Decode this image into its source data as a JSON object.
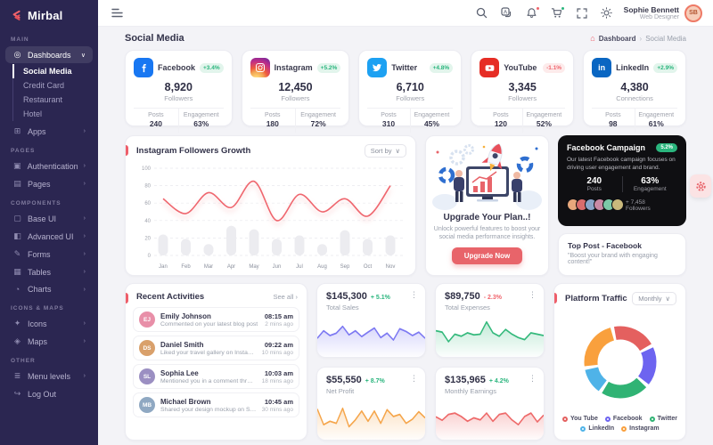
{
  "brand": {
    "name": "Mirbal"
  },
  "navbar": {
    "user": {
      "name": "Sophie Bennett",
      "role": "Web Designer",
      "initials": "SB"
    }
  },
  "page": {
    "title": "Social Media",
    "breadcrumb": {
      "home": "Dashboard",
      "current": "Social Media"
    }
  },
  "sidebar": {
    "sections": [
      {
        "label": "MAIN",
        "items": [
          {
            "icon": "◎",
            "label": "Dashboards",
            "chevron": "∨"
          },
          {
            "icon": "⊞",
            "label": "Apps",
            "chevron": "›"
          }
        ]
      },
      {
        "label": "PAGES",
        "items": [
          {
            "icon": "▣",
            "label": "Authentication",
            "chevron": "›"
          },
          {
            "icon": "▤",
            "label": "Pages",
            "chevron": "›"
          }
        ]
      },
      {
        "label": "COMPONENTS",
        "items": [
          {
            "icon": "▢",
            "label": "Base UI",
            "chevron": "›"
          },
          {
            "icon": "◧",
            "label": "Advanced UI",
            "chevron": "›"
          },
          {
            "icon": "✎",
            "label": "Forms",
            "chevron": "›"
          },
          {
            "icon": "▦",
            "label": "Tables",
            "chevron": "›"
          },
          {
            "icon": "◔",
            "label": "Charts",
            "chevron": "›"
          }
        ]
      },
      {
        "label": "ICONS & MAPS",
        "items": [
          {
            "icon": "✦",
            "label": "Icons",
            "chevron": "›"
          },
          {
            "icon": "◈",
            "label": "Maps",
            "chevron": "›"
          }
        ]
      },
      {
        "label": "OTHER",
        "items": [
          {
            "icon": "≣",
            "label": "Menu levels",
            "chevron": "›"
          },
          {
            "icon": "↪",
            "label": "Log Out",
            "chevron": ""
          }
        ]
      }
    ],
    "dashboards_children": [
      {
        "label": "Social Media"
      },
      {
        "label": "Credit Card"
      },
      {
        "label": "Restaurant"
      },
      {
        "label": "Hotel"
      }
    ]
  },
  "social_cards": [
    {
      "name": "Facebook",
      "delta": "+3.4%",
      "value": "8,920",
      "value_label": "Followers",
      "posts_label": "Posts",
      "posts": "240",
      "eng_label": "Engagement",
      "eng": "63%"
    },
    {
      "name": "Instagram",
      "delta": "+5.2%",
      "value": "12,450",
      "value_label": "Followers",
      "posts_label": "Posts",
      "posts": "180",
      "eng_label": "Engagement",
      "eng": "72%"
    },
    {
      "name": "Twitter",
      "delta": "+4.8%",
      "value": "6,710",
      "value_label": "Followers",
      "posts_label": "Posts",
      "posts": "310",
      "eng_label": "Engagement",
      "eng": "45%"
    },
    {
      "name": "YouTube",
      "delta": "-1.1%",
      "value": "3,345",
      "value_label": "Followers",
      "posts_label": "Posts",
      "posts": "120",
      "eng_label": "Engagement",
      "eng": "52%"
    },
    {
      "name": "LinkedIn",
      "delta": "+2.9%",
      "value": "4,380",
      "value_label": "Connections",
      "posts_label": "Posts",
      "posts": "98",
      "eng_label": "Engagement",
      "eng": "61%"
    }
  ],
  "growth": {
    "title": "Instagram Followers Growth",
    "sort_label": "Sort by",
    "chart_data": {
      "type": "line",
      "categories": [
        "Jan",
        "Feb",
        "Mar",
        "Apr",
        "May",
        "Jun",
        "Jul",
        "Aug",
        "Sep",
        "Oct",
        "Nov"
      ],
      "series": [
        {
          "name": "Followers",
          "style": "smooth-line",
          "color": "#ef666e",
          "values": [
            65,
            48,
            72,
            55,
            85,
            40,
            70,
            50,
            65,
            45,
            80
          ]
        },
        {
          "name": "Posts",
          "style": "bar",
          "color": "#ececf0",
          "values": [
            24,
            19,
            13,
            34,
            30,
            19,
            23,
            13,
            29,
            19,
            23
          ]
        }
      ],
      "ylim": [
        0,
        100
      ],
      "yticks": [
        0,
        20,
        40,
        60,
        80,
        100
      ],
      "grid": "dashed"
    }
  },
  "upgrade": {
    "title": "Upgrade Your Plan..!",
    "description": "Unlock powerful features to boost your social media performance insights.",
    "button": "Upgrade Now"
  },
  "campaign": {
    "title": "Facebook Campaign",
    "badge": "5.2%",
    "description": "Our latest Facebook campaign focuses on driving user engagement and brand.",
    "posts": "240",
    "posts_label": "Posts",
    "engagement": "63%",
    "engagement_label": "Engagement",
    "followers": "+ 7,458",
    "followers_label": "Followers",
    "avatars": [
      {
        "color": "#e8a87c"
      },
      {
        "color": "#d96c6c"
      },
      {
        "color": "#8aa5c9"
      },
      {
        "color": "#c98aa5"
      },
      {
        "color": "#7cc9a8"
      },
      {
        "color": "#c9b97c"
      }
    ]
  },
  "top_post": {
    "title": "Top Post - Facebook",
    "quote": "\"Boost your brand with engaging content!\""
  },
  "activities": {
    "title": "Recent Activities",
    "see_all": "See all ›",
    "items": [
      {
        "initials": "EJ",
        "color": "#e88fa8",
        "name": "Emily Johnson",
        "action": "Commented on your latest blog post",
        "time": "08:15 am",
        "ago": "2 mins ago"
      },
      {
        "initials": "DS",
        "color": "#d9a06b",
        "name": "Daniel Smith",
        "action": "Liked your travel gallery on Instagram",
        "time": "09:22 am",
        "ago": "10 mins ago"
      },
      {
        "initials": "SL",
        "color": "#9b8fc2",
        "name": "Sophia Lee",
        "action": "Mentioned you in a comment thread",
        "time": "10:03 am",
        "ago": "18 mins ago"
      },
      {
        "initials": "MB",
        "color": "#8fa8c2",
        "name": "Michael Brown",
        "action": "Shared your design mockup on Slack",
        "time": "10:45 am",
        "ago": "30 mins ago"
      }
    ]
  },
  "stats": {
    "cards": [
      {
        "value": "$145,300",
        "delta": "+ 5.1%",
        "delta_color": "#2ab57d",
        "label": "Total Sales",
        "color": "#7d79f2",
        "spark": [
          40,
          62,
          48,
          55,
          75,
          50,
          62,
          45,
          58,
          70,
          42,
          55,
          35,
          68,
          60,
          48,
          58,
          40
        ]
      },
      {
        "value": "$89,750",
        "delta": "- 2.3%",
        "delta_color": "#f0646c",
        "label": "Total Expenses",
        "color": "#34b97c",
        "spark": [
          62,
          58,
          30,
          52,
          46,
          56,
          50,
          52,
          88,
          56,
          46,
          66,
          52,
          42,
          36,
          56,
          52,
          48
        ]
      },
      {
        "value": "$55,550",
        "delta": "+ 8.7%",
        "delta_color": "#2ab57d",
        "label": "Net Profit",
        "color": "#f5a54a",
        "spark": [
          78,
          32,
          42,
          36,
          80,
          26,
          46,
          72,
          42,
          72,
          36,
          76,
          56,
          62,
          36,
          48,
          70,
          52
        ]
      },
      {
        "value": "$135,965",
        "delta": "+ 4.2%",
        "delta_color": "#2ab57d",
        "label": "Monthly Earnings",
        "color": "#ee6a6a",
        "spark": [
          55,
          45,
          62,
          66,
          56,
          42,
          52,
          46,
          66,
          42,
          62,
          66,
          46,
          32,
          56,
          66,
          40,
          60
        ]
      }
    ]
  },
  "traffic": {
    "title": "Platform Traffic",
    "filter": "Monthly",
    "chart_data": {
      "type": "donut",
      "labels": [
        "You Tube",
        "Facebook",
        "Twitter",
        "LinkedIn",
        "Instagram"
      ],
      "values": [
        21,
        19,
        23,
        13,
        24
      ],
      "colors": [
        "#e4605f",
        "#6d64f0",
        "#30b374",
        "#4fb3e8",
        "#f9a03d"
      ],
      "legend_position": "bottom"
    }
  }
}
